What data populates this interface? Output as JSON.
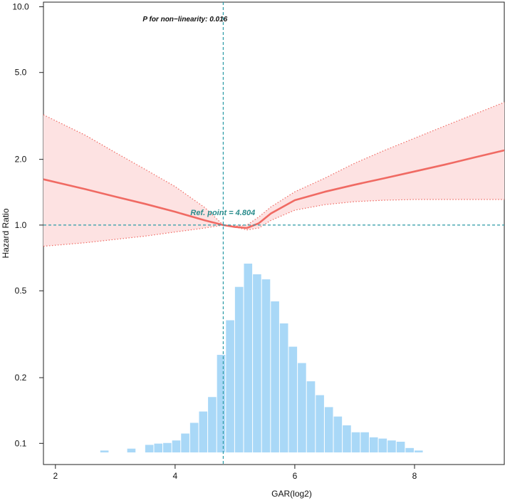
{
  "chart_data": {
    "type": "line",
    "title": "",
    "xlabel": "GAR(log2)",
    "ylabel": "Hazard Ratio",
    "xlim": [
      1.8,
      9.5
    ],
    "ylim": [
      0.08,
      10.5
    ],
    "y_scale": "log",
    "x_ticks": [
      2,
      4,
      6,
      8
    ],
    "x_tick_labels": [
      "2",
      "4",
      "6",
      "8"
    ],
    "y_ticks": [
      0.1,
      0.2,
      0.5,
      1.0,
      2.0,
      5.0,
      10.0
    ],
    "y_tick_labels": [
      "0.1",
      "0.2",
      "0.5",
      "1.0",
      "2.0",
      "5.0",
      "10.0"
    ],
    "annotations": {
      "p_nonlinearity": "P for non−linearity: 0.016",
      "ref_point_label": "Ref. point = 4.804"
    },
    "reference": {
      "x": 4.804,
      "y": 1.0
    },
    "series": [
      {
        "name": "Hazard Ratio",
        "color": "#f06a63",
        "x": [
          1.8,
          2.5,
          3.0,
          3.5,
          4.0,
          4.5,
          4.804,
          5.0,
          5.2,
          5.4,
          5.6,
          6.0,
          6.5,
          7.0,
          7.5,
          8.0,
          8.5,
          9.0,
          9.5
        ],
        "y": [
          1.62,
          1.46,
          1.35,
          1.25,
          1.15,
          1.05,
          1.0,
          0.98,
          0.97,
          1.02,
          1.13,
          1.3,
          1.42,
          1.53,
          1.64,
          1.76,
          1.89,
          2.04,
          2.2
        ],
        "lower": [
          0.8,
          0.83,
          0.86,
          0.89,
          0.93,
          0.97,
          1.0,
          0.98,
          0.95,
          0.97,
          1.05,
          1.17,
          1.24,
          1.28,
          1.3,
          1.31,
          1.31,
          1.31,
          1.31
        ],
        "upper": [
          3.2,
          2.58,
          2.15,
          1.8,
          1.5,
          1.2,
          1.0,
          0.99,
          1.0,
          1.09,
          1.21,
          1.42,
          1.64,
          1.92,
          2.2,
          2.5,
          2.84,
          3.22,
          3.65
        ]
      }
    ],
    "ci_fill_color": "#fde2e2",
    "ref_line_color": "#2a9aa6",
    "histogram": {
      "color": "#a9d8f7",
      "bin_width": 0.15,
      "bin_starts": [
        2.75,
        3.2,
        3.5,
        3.65,
        3.8,
        3.95,
        4.1,
        4.25,
        4.4,
        4.55,
        4.7,
        4.85,
        5.0,
        5.15,
        5.3,
        5.45,
        5.6,
        5.75,
        5.9,
        6.05,
        6.2,
        6.35,
        6.5,
        6.65,
        6.8,
        6.95,
        7.1,
        7.25,
        7.4,
        7.55,
        7.7,
        7.85,
        8.0
      ],
      "heights": [
        0.03,
        0.06,
        0.12,
        0.14,
        0.15,
        0.19,
        0.3,
        0.47,
        0.65,
        0.88,
        1.55,
        2.1,
        2.63,
        3.0,
        2.83,
        2.75,
        2.4,
        2.05,
        1.68,
        1.42,
        1.13,
        0.91,
        0.72,
        0.57,
        0.43,
        0.32,
        0.32,
        0.24,
        0.22,
        0.19,
        0.17,
        0.07,
        0.03
      ]
    }
  }
}
